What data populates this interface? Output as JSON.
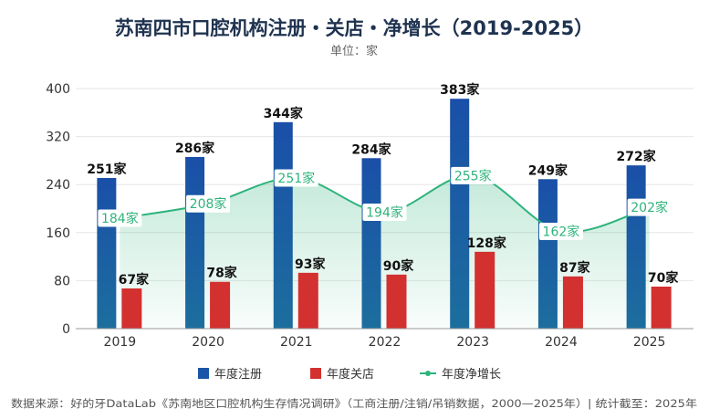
{
  "title": "苏南四市口腔机构注册・关店・净增长（2019-2025）",
  "subtitle": "单位：家",
  "colors": {
    "registered": "#1b55a8",
    "closed": "#d33030",
    "net": "#2eb37c"
  },
  "chart_data": {
    "type": "bar",
    "categories": [
      "2019",
      "2020",
      "2021",
      "2022",
      "2023",
      "2024",
      "2025"
    ],
    "ylim": [
      0,
      400
    ],
    "yticks": [
      0,
      80,
      160,
      240,
      320,
      400
    ],
    "value_suffix": "家",
    "legend_position": "bottom",
    "series": [
      {
        "name": "年度注册",
        "type": "bar",
        "values": [
          251,
          286,
          344,
          284,
          383,
          249,
          272
        ]
      },
      {
        "name": "年度关店",
        "type": "bar",
        "values": [
          67,
          78,
          93,
          90,
          128,
          87,
          70
        ]
      },
      {
        "name": "年度净增长",
        "type": "line",
        "values": [
          184,
          208,
          251,
          194,
          255,
          162,
          202
        ]
      }
    ]
  },
  "source": "数据来源：好的牙DataLab《苏南地区口腔机构生存情况调研》（工商注册/注销/吊销数据，2000—2025年）| 统计截至：2025年"
}
